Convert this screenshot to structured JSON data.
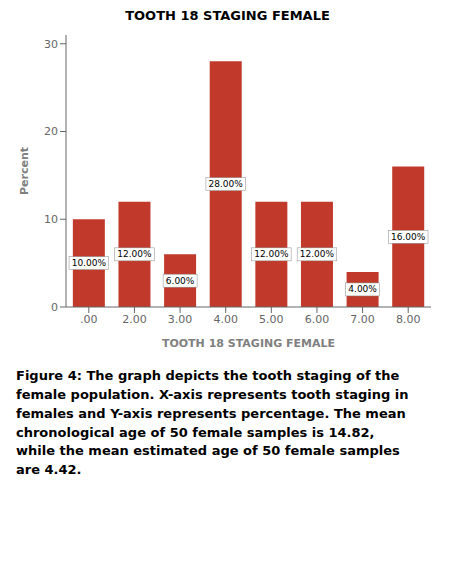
{
  "chart_data": {
    "type": "bar",
    "title": "TOOTH 18 STAGING FEMALE",
    "xlabel": "TOOTH 18 STAGING FEMALE",
    "ylabel": "Percent",
    "categories": [
      ".00",
      "2.00",
      "3.00",
      "4.00",
      "5.00",
      "6.00",
      "7.00",
      "8.00"
    ],
    "values": [
      10.0,
      12.0,
      6.0,
      28.0,
      12.0,
      12.0,
      4.0,
      16.0
    ],
    "value_labels": [
      "10.00%",
      "12.00%",
      "6.00%",
      "28.00%",
      "12.00%",
      "12.00%",
      "4.00%",
      "16.00%"
    ],
    "data_labels": true,
    "color": "#C0392B",
    "ylim": [
      0,
      31
    ],
    "yticks": [
      0,
      10,
      20,
      30
    ],
    "grid": false,
    "annotations": [
      "Figure 4: The graph depicts the tooth staging of the",
      "female population. X-axis represents tooth staging in",
      "females and Y-axis represents percentage. The mean",
      "chronological age of 50 female samples is 14.82,",
      "while the mean estimated age of 50 female samples",
      "are 4.42."
    ]
  }
}
